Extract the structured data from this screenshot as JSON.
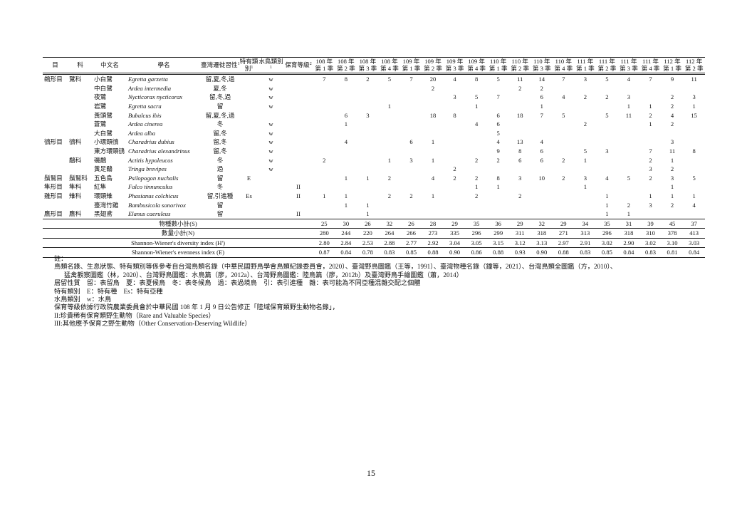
{
  "table": {
    "headers": {
      "order": "目",
      "family": "科",
      "chinese_name": "中文名",
      "scientific_name": "學名",
      "migration": "臺灣遷徙習性",
      "migration_sup": "1",
      "endemic": "特有類別",
      "endemic_sup": "1",
      "waterbird": "水鳥類別",
      "waterbird_sup": "1",
      "conservation": "保育等級",
      "conservation_sup": "2",
      "seasons": [
        {
          "year": "108 年",
          "quarter": "第 1 季"
        },
        {
          "year": "108 年",
          "quarter": "第 2 季"
        },
        {
          "year": "108 年",
          "quarter": "第 3 季"
        },
        {
          "year": "108 年",
          "quarter": "第 4 季"
        },
        {
          "year": "109 年",
          "quarter": "第 1 季"
        },
        {
          "year": "109 年",
          "quarter": "第 2 季"
        },
        {
          "year": "109 年",
          "quarter": "第 3 季"
        },
        {
          "year": "109 年",
          "quarter": "第 4 季"
        },
        {
          "year": "110 年",
          "quarter": "第 1 季"
        },
        {
          "year": "110 年",
          "quarter": "第 2 季"
        },
        {
          "year": "110 年",
          "quarter": "第 3 季"
        },
        {
          "year": "110 年",
          "quarter": "第 4 季"
        },
        {
          "year": "111 年",
          "quarter": "第 1 季"
        },
        {
          "year": "111 年",
          "quarter": "第 2 季"
        },
        {
          "year": "111 年",
          "quarter": "第 3 季"
        },
        {
          "year": "111 年",
          "quarter": "第 4 季"
        },
        {
          "year": "112 年",
          "quarter": "第 1 季"
        },
        {
          "year": "112 年",
          "quarter": "第 2 季"
        }
      ]
    },
    "rows": [
      {
        "order": "鵜形目",
        "family": "鷺科",
        "chinese": "小白鷺",
        "scientific": "Egretta garzetta",
        "migration": "留,夏,冬,過",
        "endemic": "",
        "waterbird": "w",
        "conservation": "",
        "counts": [
          "7",
          "8",
          "2",
          "5",
          "7",
          "20",
          "4",
          "8",
          "5",
          "11",
          "14",
          "7",
          "3",
          "5",
          "4",
          "7",
          "9",
          "11"
        ]
      },
      {
        "order": "",
        "family": "",
        "chinese": "中白鷺",
        "scientific": "Ardea intermedia",
        "migration": "夏,冬",
        "endemic": "",
        "waterbird": "w",
        "conservation": "",
        "counts": [
          "",
          "",
          "",
          "",
          "",
          "2",
          "",
          "",
          "",
          "2",
          "2",
          "",
          "",
          "",
          "",
          "",
          "",
          ""
        ]
      },
      {
        "order": "",
        "family": "",
        "chinese": "夜鷺",
        "scientific": "Nycticorax nycticorax",
        "migration": "留,冬,過",
        "endemic": "",
        "waterbird": "w",
        "conservation": "",
        "counts": [
          "",
          "",
          "",
          "",
          "",
          "",
          "3",
          "5",
          "7",
          "",
          "6",
          "4",
          "2",
          "2",
          "3",
          "",
          "2",
          "3"
        ]
      },
      {
        "order": "",
        "family": "",
        "chinese": "岩鷺",
        "scientific": "Egretta sacra",
        "migration": "留",
        "endemic": "",
        "waterbird": "w",
        "conservation": "",
        "counts": [
          "",
          "",
          "",
          "1",
          "",
          "",
          "",
          "1",
          "",
          "",
          "1",
          "",
          "",
          "",
          "1",
          "1",
          "2",
          "1"
        ]
      },
      {
        "order": "",
        "family": "",
        "chinese": "黃頭鷺",
        "scientific": "Bubulcus ibis",
        "migration": "留,夏,冬,過",
        "endemic": "",
        "waterbird": "",
        "conservation": "",
        "counts": [
          "",
          "6",
          "3",
          "",
          "",
          "18",
          "8",
          "",
          "6",
          "18",
          "7",
          "5",
          "",
          "5",
          "11",
          "2",
          "4",
          "15"
        ]
      },
      {
        "order": "",
        "family": "",
        "chinese": "蒼鷺",
        "scientific": "Ardea cinerea",
        "migration": "冬",
        "endemic": "",
        "waterbird": "w",
        "conservation": "",
        "counts": [
          "",
          "1",
          "",
          "",
          "",
          "",
          "",
          "4",
          "6",
          "",
          "",
          "",
          "2",
          "",
          "",
          "1",
          "2",
          ""
        ]
      },
      {
        "order": "",
        "family": "",
        "chinese": "大白鷺",
        "scientific": "Ardea alba",
        "migration": "留,冬",
        "endemic": "",
        "waterbird": "w",
        "conservation": "",
        "counts": [
          "",
          "",
          "",
          "",
          "",
          "",
          "",
          "",
          "5",
          "",
          "",
          "",
          "",
          "",
          "",
          "",
          "",
          ""
        ]
      },
      {
        "order": "鴴形目",
        "family": "鴴科",
        "chinese": "小環頸鴴",
        "scientific": "Charadrius dubius",
        "migration": "留,冬",
        "endemic": "",
        "waterbird": "w",
        "conservation": "",
        "counts": [
          "",
          "4",
          "",
          "",
          "6",
          "1",
          "",
          "",
          "4",
          "13",
          "4",
          "",
          "",
          "",
          "",
          "",
          "3",
          ""
        ]
      },
      {
        "order": "",
        "family": "",
        "chinese": "東方環頸鴴",
        "scientific": "Charadrius alexandrinus",
        "migration": "留,冬",
        "endemic": "",
        "waterbird": "w",
        "conservation": "",
        "counts": [
          "",
          "",
          "",
          "",
          "",
          "",
          "",
          "",
          "9",
          "8",
          "6",
          "",
          "5",
          "3",
          "",
          "7",
          "11",
          "8"
        ]
      },
      {
        "order": "",
        "family": "鷸科",
        "chinese": "磯鷸",
        "scientific": "Actitis hypoleucos",
        "migration": "冬",
        "endemic": "",
        "waterbird": "w",
        "conservation": "",
        "counts": [
          "2",
          "",
          "",
          "1",
          "3",
          "1",
          "",
          "2",
          "2",
          "6",
          "6",
          "2",
          "1",
          "",
          "",
          "2",
          "1",
          ""
        ]
      },
      {
        "order": "",
        "family": "",
        "chinese": "黃足鷸",
        "scientific": "Tringa brevipes",
        "migration": "過",
        "endemic": "",
        "waterbird": "w",
        "conservation": "",
        "counts": [
          "",
          "",
          "",
          "",
          "",
          "",
          "2",
          "",
          "",
          "",
          "",
          "",
          "",
          "",
          "",
          "3",
          "2",
          ""
        ]
      },
      {
        "order": "鬚鴷目",
        "family": "鬚鴷科",
        "chinese": "五色鳥",
        "scientific": "Psilopogon nuchalis",
        "migration": "留",
        "endemic": "E",
        "waterbird": "",
        "conservation": "",
        "counts": [
          "",
          "1",
          "1",
          "2",
          "",
          "4",
          "2",
          "2",
          "8",
          "3",
          "10",
          "2",
          "3",
          "4",
          "5",
          "2",
          "3",
          "5"
        ]
      },
      {
        "order": "隼形目",
        "family": "隼科",
        "chinese": "紅隼",
        "scientific": "Falco tinnunculus",
        "migration": "冬",
        "endemic": "",
        "waterbird": "",
        "conservation": "II",
        "counts": [
          "",
          "",
          "",
          "",
          "",
          "",
          "",
          "1",
          "1",
          "",
          "",
          "",
          "1",
          "",
          "",
          "",
          "1",
          ""
        ]
      },
      {
        "order": "雞形目",
        "family": "雉科",
        "chinese": "環頸雉",
        "scientific": "Phasianus colchicus",
        "migration": "留,引進種",
        "endemic": "Es",
        "waterbird": "",
        "conservation": "II",
        "counts": [
          "1",
          "1",
          "",
          "2",
          "2",
          "1",
          "",
          "2",
          "",
          "2",
          "",
          "",
          "",
          "1",
          "",
          "1",
          "1",
          "1"
        ]
      },
      {
        "order": "",
        "family": "",
        "chinese": "臺灣竹雞",
        "scientific": "Bambusicola sonorivox",
        "migration": "留",
        "endemic": "",
        "waterbird": "",
        "conservation": "",
        "counts": [
          "",
          "1",
          "1",
          "",
          "",
          "",
          "",
          "",
          "",
          "",
          "",
          "",
          "",
          "1",
          "2",
          "3",
          "2",
          "4"
        ]
      },
      {
        "order": "鷹形目",
        "family": "鷹科",
        "chinese": "黑翅鳶",
        "scientific": "Elanus caeruleus",
        "migration": "留",
        "endemic": "",
        "waterbird": "",
        "conservation": "II",
        "counts": [
          "",
          "",
          "1",
          "",
          "",
          "",
          "",
          "",
          "",
          "",
          "",
          "",
          "",
          "1",
          "1",
          "",
          "",
          ""
        ]
      }
    ],
    "summary": [
      {
        "label": "物種數小計(S)",
        "values": [
          "25",
          "30",
          "26",
          "32",
          "26",
          "28",
          "29",
          "35",
          "36",
          "29",
          "32",
          "29",
          "34",
          "35",
          "31",
          "39",
          "45",
          "37"
        ]
      },
      {
        "label": "數量小計(N)",
        "values": [
          "280",
          "244",
          "220",
          "264",
          "266",
          "273",
          "335",
          "296",
          "299",
          "311",
          "318",
          "271",
          "313",
          "296",
          "318",
          "310",
          "378",
          "413"
        ]
      },
      {
        "label": "Shannon-Wiener's diversity index (H')",
        "values": [
          "2.80",
          "2.84",
          "2.53",
          "2.88",
          "2.77",
          "2.92",
          "3.04",
          "3.05",
          "3.15",
          "3.12",
          "3.13",
          "2.97",
          "2.91",
          "3.02",
          "2.90",
          "3.02",
          "3.10",
          "3.03"
        ]
      },
      {
        "label": "Shannon-Wiener's evenness index (E)",
        "values": [
          "0.87",
          "0.84",
          "0.78",
          "0.83",
          "0.85",
          "0.88",
          "0.90",
          "0.86",
          "0.88",
          "0.93",
          "0.90",
          "0.88",
          "0.83",
          "0.85",
          "0.84",
          "0.83",
          "0.81",
          "0.84"
        ]
      }
    ]
  },
  "notes": {
    "title": "註：",
    "lines": [
      "鳥類名錄、生息狀態、特有類別等係參考自台灣鳥類名錄（中華民國野鳥學會鳥類紀錄委員會，2020）、臺灣野鳥圖鑑（王等，1991）、臺灣物種名錄（鐘等，2021）、台灣鳥類全圖鑑（方，2010）、",
      "猛禽觀察圖鑑（林，2020）、台灣野鳥圖鑑：水鳥篇（廖，2012a）、台灣野鳥圖鑑：陸鳥篇（廖，2012b）及臺灣野鳥手繪圖鑑（蕭，2014）",
      "居留性質　留：表留鳥　夏：表夏候鳥　冬：表冬候鳥　過：表過境鳥　引：表引進種　雜：表可能為不同亞種混雜交配之個體",
      "特有類別　E：特有種　Es：特有亞種",
      "水鳥類別　w：水鳥",
      "保育等級依據行政院農業委員會於中華民國 108 年 1 月 9 日公告修正「陸域保育類野生動物名錄」，",
      "II:珍貴稀有保育類野生動物（Rare and Valuable Species）",
      "III:其他應予保育之野生動物（Other Conservation-Deserving Wildlife）"
    ]
  },
  "page_number": "15"
}
